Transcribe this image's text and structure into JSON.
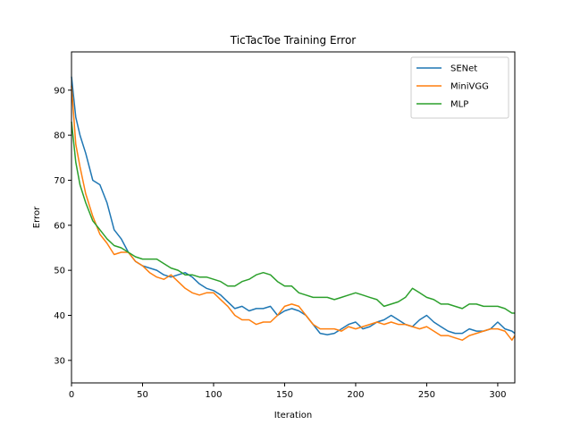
{
  "chart_data": {
    "type": "line",
    "title": "TicTacToe Training Error",
    "xlabel": "Iteration",
    "ylabel": "Error",
    "xlim": [
      0,
      312
    ],
    "ylim": [
      25,
      98.5
    ],
    "xticks": [
      0,
      50,
      100,
      150,
      200,
      250,
      300
    ],
    "yticks": [
      30,
      40,
      50,
      60,
      70,
      80,
      90
    ],
    "grid": false,
    "legend_position": "top-right",
    "series": [
      {
        "name": "SENet",
        "color": "#1f77b4",
        "x": [
          0,
          3,
          6,
          10,
          15,
          20,
          25,
          30,
          35,
          40,
          45,
          50,
          55,
          60,
          65,
          70,
          75,
          80,
          85,
          90,
          95,
          100,
          105,
          110,
          115,
          120,
          125,
          130,
          135,
          140,
          145,
          150,
          155,
          160,
          165,
          170,
          175,
          180,
          185,
          190,
          195,
          200,
          205,
          210,
          215,
          220,
          225,
          230,
          235,
          240,
          245,
          250,
          255,
          260,
          265,
          270,
          275,
          280,
          285,
          290,
          295,
          300,
          305,
          310,
          312
        ],
        "y": [
          93,
          84,
          80,
          76,
          70,
          69,
          65,
          59,
          57,
          54,
          52,
          51,
          50.5,
          50,
          49,
          48.5,
          49,
          49.5,
          48.5,
          47,
          46,
          45.5,
          44.5,
          43,
          41.5,
          42,
          41,
          41.5,
          41.5,
          42,
          40,
          41,
          41.5,
          41,
          40,
          38,
          36,
          35.7,
          36,
          37,
          38,
          38.5,
          37,
          37.5,
          38.5,
          39,
          40,
          39,
          38,
          37.5,
          39,
          40,
          38.5,
          37.5,
          36.5,
          36,
          36,
          37,
          36.5,
          36.5,
          37,
          38.5,
          37,
          36.5,
          36
        ]
      },
      {
        "name": "MiniVGG",
        "color": "#ff7f0e",
        "x": [
          0,
          3,
          6,
          10,
          15,
          20,
          25,
          30,
          35,
          40,
          45,
          50,
          55,
          60,
          65,
          70,
          75,
          80,
          85,
          90,
          95,
          100,
          105,
          110,
          115,
          120,
          125,
          130,
          135,
          140,
          145,
          150,
          155,
          160,
          165,
          170,
          175,
          180,
          185,
          190,
          195,
          200,
          205,
          210,
          215,
          220,
          225,
          230,
          235,
          240,
          245,
          250,
          255,
          260,
          265,
          270,
          275,
          280,
          285,
          290,
          295,
          300,
          305,
          310,
          312
        ],
        "y": [
          91,
          78,
          73,
          67,
          62,
          58,
          56,
          53.5,
          54,
          54,
          52,
          51,
          49.5,
          48.5,
          48,
          49,
          47.5,
          46,
          45,
          44.5,
          45,
          45,
          43.5,
          42,
          40,
          39,
          39,
          38,
          38.5,
          38.5,
          40,
          42,
          42.5,
          42,
          40,
          38,
          37,
          37,
          37,
          36.5,
          37.5,
          37,
          37.5,
          38,
          38.5,
          38,
          38.5,
          38,
          38,
          37.5,
          37,
          37.5,
          36.5,
          35.5,
          35.5,
          35,
          34.5,
          35.5,
          36,
          36.5,
          37,
          37,
          36.5,
          34.5,
          35.5
        ]
      },
      {
        "name": "MLP",
        "color": "#2ca02c",
        "x": [
          0,
          3,
          6,
          10,
          15,
          20,
          25,
          30,
          35,
          40,
          45,
          50,
          55,
          60,
          65,
          70,
          75,
          80,
          85,
          90,
          95,
          100,
          105,
          110,
          115,
          120,
          125,
          130,
          135,
          140,
          145,
          150,
          155,
          160,
          165,
          170,
          175,
          180,
          185,
          190,
          195,
          200,
          205,
          210,
          215,
          220,
          225,
          230,
          235,
          240,
          245,
          250,
          255,
          260,
          265,
          270,
          275,
          280,
          285,
          290,
          295,
          300,
          305,
          310,
          312
        ],
        "y": [
          83,
          74,
          69,
          65,
          61,
          59,
          57,
          55.5,
          55,
          54,
          53,
          52.5,
          52.5,
          52.5,
          51.5,
          50.5,
          50,
          49,
          49,
          48.5,
          48.5,
          48,
          47.5,
          46.5,
          46.5,
          47.5,
          48,
          49,
          49.5,
          49,
          47.5,
          46.5,
          46.5,
          45,
          44.5,
          44,
          44,
          44,
          43.5,
          44,
          44.5,
          45,
          44.5,
          44,
          43.5,
          42,
          42.5,
          43,
          44,
          46,
          45,
          44,
          43.5,
          42.5,
          42.5,
          42,
          41.5,
          42.5,
          42.5,
          42,
          42,
          42,
          41.5,
          40.5,
          40.5
        ]
      }
    ]
  }
}
